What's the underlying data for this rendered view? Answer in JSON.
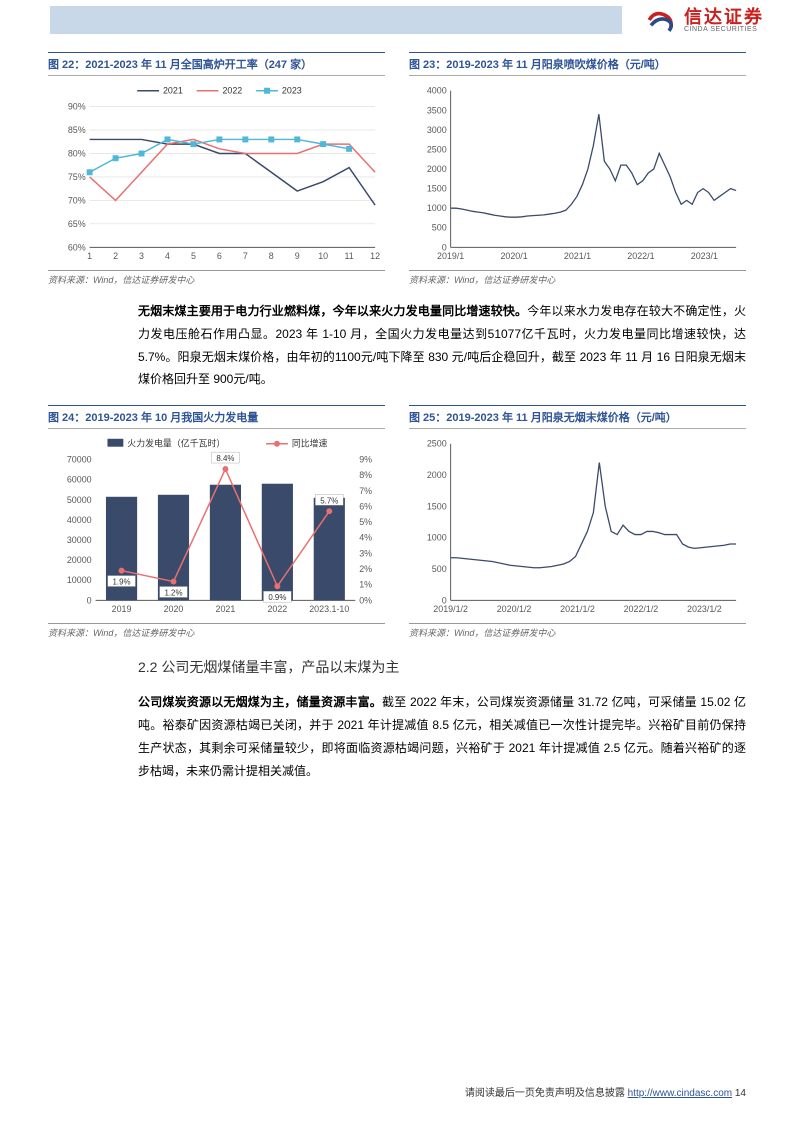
{
  "header": {
    "logo_cn": "信达证券",
    "logo_en": "CINDA SECURITIES"
  },
  "chart22": {
    "title": "图 22：2021-2023 年 11 月全国高炉开工率（247 家）",
    "type": "line",
    "legend": [
      "2021",
      "2022",
      "2023"
    ],
    "x": [
      1,
      2,
      3,
      4,
      5,
      6,
      7,
      8,
      9,
      10,
      11,
      12
    ],
    "ylim": [
      60,
      90
    ],
    "ytick_step": 5,
    "series": {
      "2021": [
        83,
        83,
        83,
        82,
        82,
        80,
        80,
        76,
        72,
        74,
        77,
        69
      ],
      "2022": [
        75,
        70,
        76,
        82,
        83,
        81,
        80,
        80,
        80,
        82,
        82,
        76
      ],
      "2023": [
        76,
        79,
        80,
        83,
        82,
        83,
        83,
        83,
        83,
        82,
        81
      ]
    },
    "colors": {
      "2021": "#3a4a6a",
      "2022": "#e87070",
      "2023": "#4fb8d8"
    },
    "marker_2023": "square",
    "source": "资料来源：Wind，信达证券研发中心"
  },
  "chart23": {
    "title": "图 23：2019-2023 年 11 月阳泉喷吹煤价格（元/吨）",
    "type": "line",
    "x_labels": [
      "2019/1",
      "2020/1",
      "2021/1",
      "2022/1",
      "2023/1"
    ],
    "ylim": [
      0,
      4000
    ],
    "ytick_step": 500,
    "data": [
      1000,
      1000,
      980,
      950,
      920,
      900,
      880,
      850,
      820,
      800,
      780,
      770,
      770,
      780,
      800,
      810,
      820,
      830,
      850,
      870,
      900,
      950,
      1100,
      1300,
      1600,
      2000,
      2600,
      3400,
      2200,
      2000,
      1700,
      2100,
      2100,
      1900,
      1600,
      1700,
      1900,
      2000,
      2400,
      2100,
      1800,
      1400,
      1100,
      1200,
      1100,
      1400,
      1500,
      1400,
      1200,
      1300,
      1400,
      1500,
      1450
    ],
    "line_color": "#3a4a6a",
    "source": "资料来源：Wind，信达证券研发中心"
  },
  "para1_bold": "无烟末煤主要用于电力行业燃料煤，今年以来火力发电量同比增速较快。",
  "para1": "今年以来水力发电存在较大不确定性，火力发电压舱石作用凸显。2023 年 1-10 月，全国火力发电量达到51077亿千瓦时，火力发电量同比增速较快，达5.7%。阳泉无烟末煤价格，由年初的1100元/吨下降至 830 元/吨后企稳回升，截至 2023 年 11 月 16 日阳泉无烟末煤价格回升至 900元/吨。",
  "chart24": {
    "title": "图 24：2019-2023 年 10 月我国火力发电量",
    "type": "bar+line",
    "legend_bar": "火力发电量（亿千瓦时）",
    "legend_line": "同比增速",
    "x": [
      "2019",
      "2020",
      "2021",
      "2022",
      "2023.1-10"
    ],
    "bar_values": [
      51500,
      52500,
      57500,
      58000,
      51000
    ],
    "line_values": [
      1.9,
      1.2,
      8.4,
      0.9,
      5.7
    ],
    "value_labels": [
      "1.9%",
      "1.2%",
      "8.4%",
      "0.9%",
      "5.7%"
    ],
    "ylim_left": [
      0,
      70000
    ],
    "ytick_left": 10000,
    "ylim_right": [
      0,
      9
    ],
    "ytick_right": 1,
    "bar_color": "#3a4a6a",
    "line_color": "#e87070",
    "source": "资料来源：Wind，信达证券研发中心"
  },
  "chart25": {
    "title": "图 25：2019-2023 年 11 月阳泉无烟末煤价格（元/吨）",
    "type": "line",
    "x_labels": [
      "2019/1/2",
      "2020/1/2",
      "2021/1/2",
      "2022/1/2",
      "2023/1/2"
    ],
    "ylim": [
      0,
      2500
    ],
    "ytick_step": 500,
    "data": [
      680,
      680,
      670,
      660,
      650,
      640,
      630,
      620,
      600,
      580,
      560,
      550,
      540,
      530,
      520,
      520,
      530,
      540,
      560,
      580,
      620,
      700,
      900,
      1100,
      1400,
      2200,
      1500,
      1100,
      1050,
      1200,
      1100,
      1050,
      1050,
      1100,
      1100,
      1080,
      1050,
      1050,
      1050,
      900,
      850,
      830,
      840,
      850,
      860,
      870,
      880,
      900,
      900
    ],
    "line_color": "#3a4a6a",
    "source": "资料来源：Wind，信达证券研发中心"
  },
  "section_heading": "2.2 公司无烟煤储量丰富，产品以末煤为主",
  "para2_bold": "公司煤炭资源以无烟煤为主，储量资源丰富。",
  "para2": "截至 2022 年末，公司煤炭资源储量 31.72 亿吨，可采储量 15.02 亿吨。裕泰矿因资源枯竭已关闭，并于 2021 年计提减值 8.5 亿元，相关减值已一次性计提完毕。兴裕矿目前仍保持生产状态，其剩余可采储量较少，即将面临资源枯竭问题，兴裕矿于 2021 年计提减值 2.5 亿元。随着兴裕矿的逐步枯竭，未来仍需计提相关减值。",
  "footer_text": "请阅读最后一页免责声明及信息披露",
  "footer_link": "http://www.cindasc.com",
  "page_num": "14"
}
